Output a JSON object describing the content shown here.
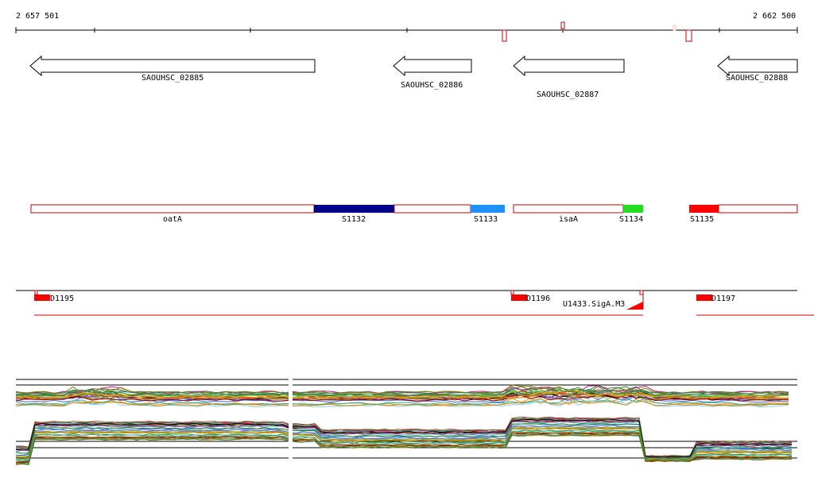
{
  "ruler": {
    "start_label": "2 657 501",
    "end_label": "2 662 500",
    "start_pos": 2657501,
    "end_pos": 2662500
  },
  "genes": [
    {
      "id": "g1",
      "label": "SAOUHSC_02885",
      "strand": "-",
      "start": 2657600,
      "end": 2659400
    },
    {
      "id": "g2",
      "label": "SAOUHSC_02886",
      "strand": "-",
      "start": 2659900,
      "end": 2660400
    },
    {
      "id": "g3",
      "label": "SAOUHSC_02887",
      "strand": "-",
      "start": 2660660,
      "end": 2661360
    },
    {
      "id": "g4",
      "label": "SAOUHSC_02888",
      "strand": "-",
      "start": 2662000,
      "end": 2662500
    }
  ],
  "segments": [
    {
      "label": "oatA",
      "kind": "outline"
    },
    {
      "label": "S1132",
      "kind": "filled",
      "color": "#00008b"
    },
    {
      "label": "S1133",
      "kind": "filled",
      "color": "#1e90ff"
    },
    {
      "label": "isaA",
      "kind": "outline"
    },
    {
      "label": "S1134",
      "kind": "filled",
      "color": "#22dd22"
    },
    {
      "label": "S1135",
      "kind": "filled",
      "color": "#ff0000"
    }
  ],
  "features": [
    {
      "label": "D1195",
      "color": "#ff0000"
    },
    {
      "label": "D1196",
      "color": "#ff0000"
    },
    {
      "label": "U1433.SigA.M3",
      "color": "#ff0000"
    },
    {
      "label": "D1197",
      "color": "#ff0000"
    }
  ],
  "colors": {
    "outline": "#cc0000",
    "filled_red": "#ff0000",
    "line_red": "#cc0000"
  }
}
